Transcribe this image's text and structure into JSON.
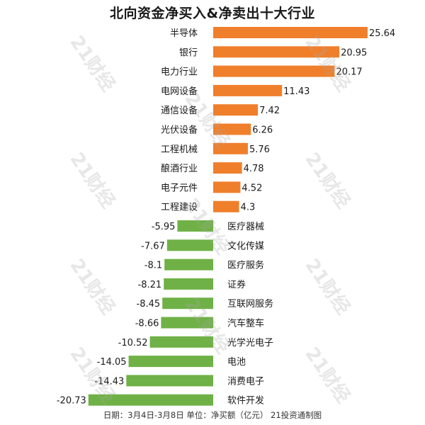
{
  "title": "北向资金净买入&净卖出十大行业",
  "footer": "日期：3月4日-3月8日 单位：净买额（亿元） 21投资通制图",
  "watermark": "21财经",
  "colors": {
    "buy": "#f07f2b",
    "sell": "#6fb146"
  },
  "chart_data": {
    "type": "bar",
    "orientation": "horizontal",
    "categories": [
      "半导体",
      "银行",
      "电力行业",
      "电网设备",
      "通信设备",
      "光伏设备",
      "工程机械",
      "酿酒行业",
      "电子元件",
      "工程建设",
      "医疗器械",
      "文化传媒",
      "医疗服务",
      "证券",
      "互联网服务",
      "汽车整车",
      "光学光电子",
      "电池",
      "消费电子",
      "软件开发"
    ],
    "values": [
      25.64,
      20.95,
      20.17,
      11.43,
      7.42,
      6.26,
      5.76,
      4.78,
      4.52,
      4.3,
      -5.95,
      -7.67,
      -8.1,
      -8.21,
      -8.45,
      -8.66,
      -10.52,
      -14.05,
      -14.43,
      -20.73
    ],
    "value_labels": [
      "25.64",
      "20.95",
      "20.17",
      "11.43",
      "7.42",
      "6.26",
      "5.76",
      "4.78",
      "4.52",
      "4.3",
      "-5.95",
      "-7.67",
      "-8.1",
      "-8.21",
      "-8.45",
      "-8.66",
      "-10.52",
      "-14.05",
      "-14.43",
      "-20.73"
    ],
    "xlim": [
      -22,
      27
    ],
    "grid": false,
    "legend": "none"
  }
}
